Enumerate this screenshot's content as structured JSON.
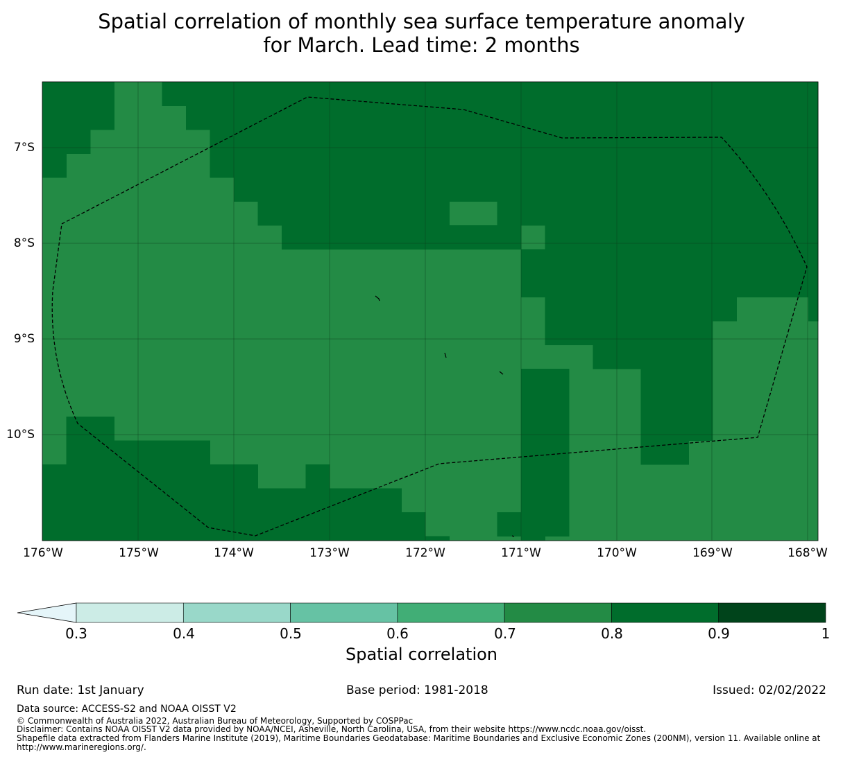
{
  "title": {
    "line1": "Spatial correlation of monthly sea surface temperature anomaly",
    "line2": "for March. Lead time: 2 months"
  },
  "map": {
    "lat_labels": [
      "7°S",
      "8°S",
      "9°S",
      "10°S"
    ],
    "lon_labels": [
      "176°W",
      "175°W",
      "174°W",
      "173°W",
      "172°W",
      "171°W",
      "170°W",
      "169°W",
      "168°W"
    ],
    "lon_range": [
      -176,
      -167.9
    ],
    "lat_range": [
      -11.1,
      -6.3
    ],
    "grid_cell_deg": 0.25,
    "colors": {
      "band_07_08": "#238b45",
      "band_08_09": "#006d2c"
    }
  },
  "colorbar": {
    "title": "Spatial correlation",
    "ticks": [
      "0.3",
      "0.4",
      "0.5",
      "0.6",
      "0.7",
      "0.8",
      "0.9",
      "1"
    ],
    "colors": [
      "#e5f5f9",
      "#ccece6",
      "#99d8c9",
      "#66c2a4",
      "#41ae76",
      "#238b45",
      "#006d2c",
      "#00441b"
    ]
  },
  "footer": {
    "run_date": "Run date: 1st January",
    "base_period": "Base period: 1981-2018",
    "issued": "Issued: 02/02/2022",
    "data_source": "Data source: ACCESS-S2 and NOAA OISST V2",
    "copyright": "© Commonwealth of Australia 2022, Australian Bureau of Meteorology, Supported by COSPPac",
    "disclaimer": "Disclaimer: Contains NOAA OISST V2 data provided by NOAA/NCEI, Asheville, North Carolina, USA, from their website https://www.ncdc.noaa.gov/oisst.",
    "shapefile": "Shapefile data extracted from Flanders Marine Institute (2019), Maritime Boundaries Geodatabase: Maritime Boundaries and Exclusive Economic Zones (200NM), version 11. Available online at http://www.marineregions.org/."
  }
}
